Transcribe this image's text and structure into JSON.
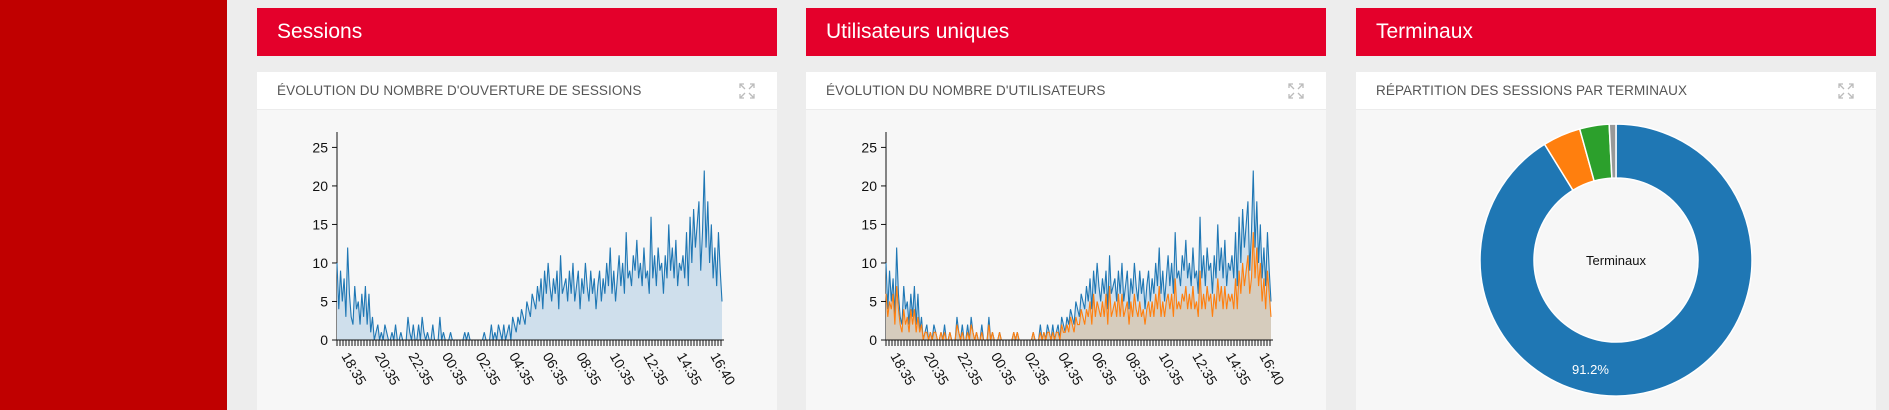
{
  "columns": [
    {
      "header": "Sessions",
      "card_title": "ÉVOLUTION DU NOMBRE D'OUVERTURE DE SESSIONS",
      "chart_data": {
        "type": "area",
        "x_tick_labels": [
          "18:35",
          "20:35",
          "22:35",
          "00:35",
          "02:35",
          "04:35",
          "06:35",
          "08:35",
          "10:35",
          "12:35",
          "14:35",
          "16:40"
        ],
        "y_ticks": [
          0,
          5,
          10,
          15,
          20,
          25
        ],
        "ylim": [
          0,
          27
        ],
        "series": [
          {
            "color": "#1f77b4",
            "fill": "#cfdfec",
            "values": [
              10,
              4,
              9,
              5,
              8,
              3,
              12,
              6,
              3,
              2,
              7,
              4,
              5,
              2,
              6,
              3,
              7,
              2,
              6,
              1,
              3,
              0,
              1,
              2,
              0,
              1,
              0,
              2,
              1,
              0,
              0,
              1,
              0,
              2,
              0,
              0,
              1,
              0,
              0,
              0,
              3,
              1,
              0,
              2,
              0,
              0,
              2,
              0,
              3,
              1,
              0,
              1,
              0,
              0,
              2,
              0,
              0,
              0,
              3,
              0,
              1,
              0,
              0,
              0,
              1,
              0,
              0,
              0,
              0,
              0,
              0,
              0,
              1,
              0,
              1,
              0,
              0,
              0,
              0,
              0,
              0,
              0,
              0,
              1,
              0,
              0,
              0,
              2,
              0,
              1,
              0,
              2,
              1,
              0,
              2,
              0,
              1,
              2,
              0,
              3,
              2,
              1,
              3,
              2,
              4,
              3,
              2,
              5,
              4,
              3,
              6,
              5,
              4,
              7,
              5,
              8,
              4,
              9,
              6,
              10,
              7,
              5,
              8,
              6,
              9,
              4,
              11,
              6,
              7,
              8,
              5,
              9,
              6,
              10,
              5,
              7,
              9,
              4,
              8,
              6,
              10,
              7,
              5,
              9,
              6,
              8,
              4,
              7,
              9,
              5,
              8,
              6,
              10,
              7,
              12,
              6,
              9,
              5,
              8,
              11,
              7,
              10,
              6,
              14,
              8,
              9,
              7,
              11,
              9,
              13,
              8,
              10,
              7,
              12,
              8,
              9,
              6,
              16,
              8,
              11,
              7,
              12,
              9,
              10,
              6,
              11,
              8,
              15,
              9,
              12,
              8,
              13,
              7,
              10,
              9,
              11,
              8,
              14,
              7,
              16,
              10,
              17,
              12,
              15,
              18,
              9,
              14,
              22,
              12,
              18,
              10,
              15,
              8,
              12,
              7,
              14,
              9,
              5
            ]
          }
        ]
      }
    },
    {
      "header": "Utilisateurs uniques",
      "card_title": "ÉVOLUTION DU NOMBRE D'UTILISATEURS",
      "chart_data": {
        "type": "area",
        "x_tick_labels": [
          "18:35",
          "20:35",
          "22:35",
          "00:35",
          "02:35",
          "04:35",
          "06:35",
          "08:35",
          "10:35",
          "12:35",
          "14:35",
          "16:40"
        ],
        "y_ticks": [
          0,
          5,
          10,
          15,
          20,
          25
        ],
        "ylim": [
          0,
          27
        ],
        "series": [
          {
            "color": "#1f77b4",
            "fill": "#cfdfec",
            "values": [
              10,
              4,
              9,
              5,
              8,
              3,
              12,
              6,
              3,
              2,
              7,
              4,
              5,
              2,
              6,
              3,
              7,
              2,
              6,
              1,
              3,
              0,
              1,
              2,
              0,
              1,
              0,
              2,
              1,
              0,
              0,
              1,
              0,
              2,
              0,
              0,
              1,
              0,
              0,
              0,
              3,
              1,
              0,
              2,
              0,
              0,
              2,
              0,
              3,
              1,
              0,
              1,
              0,
              0,
              2,
              0,
              0,
              0,
              3,
              0,
              1,
              0,
              0,
              0,
              1,
              0,
              0,
              0,
              0,
              0,
              0,
              0,
              1,
              0,
              1,
              0,
              0,
              0,
              0,
              0,
              0,
              0,
              0,
              1,
              0,
              0,
              0,
              2,
              0,
              1,
              0,
              2,
              1,
              0,
              2,
              0,
              1,
              2,
              0,
              3,
              2,
              1,
              3,
              2,
              4,
              3,
              2,
              5,
              4,
              3,
              6,
              5,
              4,
              7,
              5,
              8,
              4,
              9,
              6,
              10,
              7,
              5,
              8,
              6,
              9,
              4,
              11,
              6,
              7,
              8,
              5,
              9,
              6,
              10,
              5,
              7,
              9,
              4,
              8,
              6,
              10,
              7,
              5,
              9,
              6,
              8,
              4,
              7,
              9,
              5,
              8,
              6,
              10,
              7,
              12,
              6,
              9,
              5,
              8,
              11,
              7,
              10,
              6,
              14,
              8,
              9,
              7,
              11,
              9,
              13,
              8,
              10,
              7,
              12,
              8,
              9,
              6,
              16,
              8,
              11,
              7,
              12,
              9,
              10,
              6,
              11,
              8,
              15,
              9,
              12,
              8,
              13,
              7,
              10,
              9,
              11,
              8,
              14,
              7,
              16,
              10,
              17,
              12,
              15,
              18,
              9,
              14,
              22,
              12,
              18,
              10,
              15,
              8,
              12,
              7,
              14,
              9,
              5
            ]
          },
          {
            "color": "#ff7f0e",
            "fill": "#d8c6ad",
            "values": [
              6,
              3,
              5,
              4,
              6,
              2,
              7,
              4,
              2,
              1,
              4,
              2,
              3,
              1,
              4,
              2,
              4,
              1,
              3,
              1,
              2,
              0,
              1,
              1,
              0,
              1,
              0,
              1,
              1,
              0,
              0,
              1,
              0,
              1,
              0,
              0,
              1,
              0,
              0,
              0,
              2,
              1,
              0,
              1,
              0,
              0,
              1,
              0,
              2,
              1,
              0,
              1,
              0,
              0,
              1,
              0,
              0,
              0,
              2,
              0,
              1,
              0,
              0,
              0,
              1,
              0,
              0,
              0,
              0,
              0,
              0,
              0,
              1,
              0,
              1,
              0,
              0,
              0,
              0,
              0,
              0,
              0,
              0,
              1,
              0,
              0,
              0,
              1,
              0,
              1,
              0,
              1,
              1,
              0,
              1,
              0,
              1,
              1,
              0,
              2,
              1,
              1,
              2,
              1,
              3,
              2,
              1,
              3,
              2,
              2,
              4,
              3,
              2,
              4,
              3,
              5,
              2,
              6,
              3,
              5,
              4,
              3,
              5,
              3,
              6,
              2,
              7,
              3,
              4,
              5,
              3,
              6,
              3,
              6,
              3,
              4,
              5,
              2,
              5,
              3,
              6,
              4,
              3,
              5,
              3,
              4,
              2,
              4,
              5,
              3,
              5,
              3,
              6,
              4,
              7,
              3,
              5,
              3,
              5,
              6,
              4,
              6,
              3,
              8,
              4,
              5,
              4,
              6,
              5,
              7,
              4,
              6,
              4,
              7,
              4,
              5,
              3,
              9,
              4,
              6,
              4,
              7,
              5,
              6,
              3,
              6,
              4,
              8,
              5,
              7,
              4,
              7,
              4,
              6,
              5,
              6,
              4,
              8,
              4,
              9,
              6,
              10,
              7,
              9,
              11,
              6,
              8,
              14,
              8,
              12,
              7,
              10,
              5,
              8,
              4,
              9,
              6,
              3
            ]
          }
        ]
      }
    },
    {
      "header": "Terminaux",
      "card_title": "RÉPARTITION DES SESSIONS PAR TERMINAUX",
      "chart_data": {
        "type": "pie",
        "center_label": "Terminaux",
        "slices": [
          {
            "value": 91.2,
            "color": "#1f77b4",
            "label": "91.2%"
          },
          {
            "value": 4.5,
            "color": "#ff7f0e",
            "label": ""
          },
          {
            "value": 3.5,
            "color": "#2ca02c",
            "label": ""
          },
          {
            "value": 0.8,
            "color": "#999999",
            "label": ""
          }
        ]
      }
    }
  ],
  "icons": {
    "expand": "expand-icon"
  }
}
